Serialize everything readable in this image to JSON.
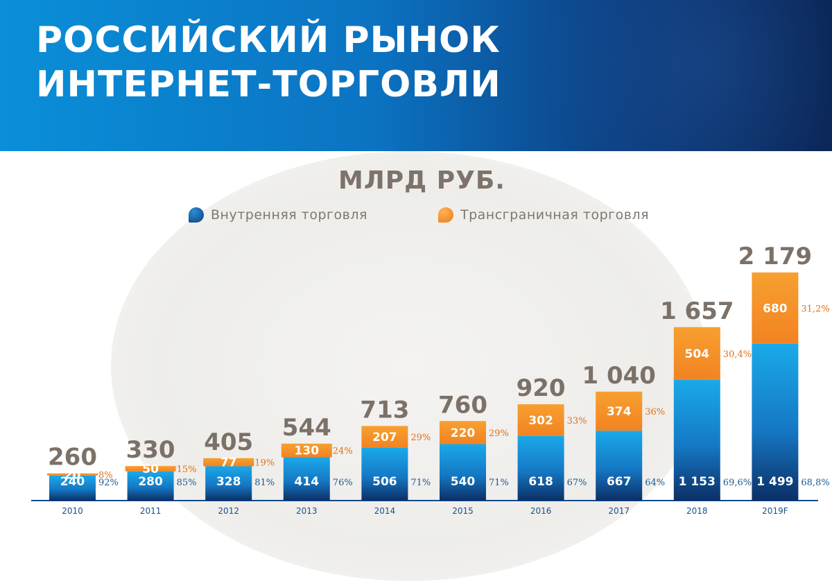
{
  "header": {
    "title_line1": "РОССИЙСКИЙ РЫНОК",
    "title_line2": "ИНТЕРНЕТ-ТОРГОВЛИ"
  },
  "chart_data": {
    "type": "bar",
    "stacked": true,
    "unit": "МЛРД РУБ.",
    "categories": [
      "2010",
      "2011",
      "2012",
      "2013",
      "2014",
      "2015",
      "2016",
      "2017",
      "2018",
      "2019F"
    ],
    "totals": [
      "260",
      "330",
      "405",
      "544",
      "713",
      "760",
      "920",
      "1 040",
      "1 657",
      "2 179"
    ],
    "series": [
      {
        "name": "Внутренняя торговля",
        "color": "#1f9fe0",
        "values": [
          240,
          280,
          328,
          414,
          506,
          540,
          618,
          667,
          1153,
          1499
        ],
        "labels": [
          "240",
          "280",
          "328",
          "414",
          "506",
          "540",
          "618",
          "667",
          "1 153",
          "1 499"
        ],
        "shares": [
          "92%",
          "85%",
          "81%",
          "76%",
          "71%",
          "71%",
          "67%",
          "64%",
          "69,6%",
          "68,8%"
        ]
      },
      {
        "name": "Трансграничная торговля",
        "color": "#f5922a",
        "values": [
          20,
          50,
          77,
          130,
          207,
          220,
          302,
          374,
          504,
          680
        ],
        "labels": [
          "20",
          "50",
          "77",
          "130",
          "207",
          "220",
          "302",
          "374",
          "504",
          "680"
        ],
        "shares": [
          "8%",
          "15%",
          "19%",
          "24%",
          "29%",
          "29%",
          "33%",
          "36%",
          "30,4%",
          "31,2%"
        ]
      }
    ],
    "legend": "top",
    "grid": false
  }
}
